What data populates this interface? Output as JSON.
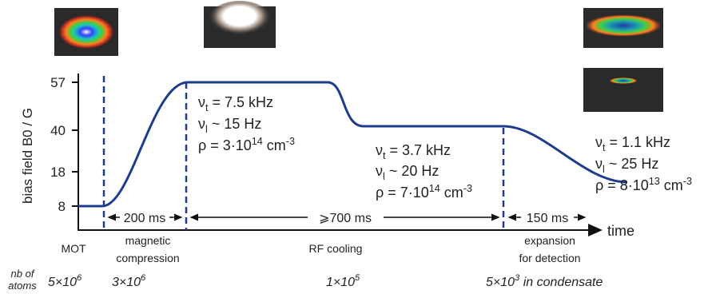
{
  "y_axis": {
    "label": "bias field B0 / G",
    "ticks": [
      "57",
      "40",
      "18",
      "8"
    ]
  },
  "x_axis": {
    "label": "time"
  },
  "durations": [
    "200 ms",
    "⩾700 ms",
    "150 ms"
  ],
  "phases": [
    [
      "MOT"
    ],
    [
      "magnetic",
      "compression"
    ],
    [
      "RF cooling"
    ],
    [
      "expansion",
      "for detection"
    ]
  ],
  "atoms": {
    "label": [
      "nb of",
      "atoms"
    ],
    "counts": [
      [
        {
          "t": "5×10"
        },
        {
          "sup": "6"
        }
      ],
      [
        {
          "t": "3×10"
        },
        {
          "sup": "6"
        }
      ],
      [
        {
          "t": "1×10"
        },
        {
          "sup": "5"
        }
      ],
      [
        {
          "t": "5×10"
        },
        {
          "sup": "3"
        },
        {
          "t": " in condensate"
        }
      ]
    ]
  },
  "annotations": [
    [
      [
        {
          "t": "ν"
        },
        {
          "sub": "t"
        },
        {
          "t": " = 7.5 kHz"
        }
      ],
      [
        {
          "t": "ν"
        },
        {
          "sub": "l"
        },
        {
          "t": " ~ 15 Hz"
        }
      ],
      [
        {
          "t": "ρ = 3·10"
        },
        {
          "sup": "14"
        },
        {
          "t": " cm"
        },
        {
          "sup": "-3"
        }
      ]
    ],
    [
      [
        {
          "t": "ν"
        },
        {
          "sub": "t"
        },
        {
          "t": " = 3.7 kHz"
        }
      ],
      [
        {
          "t": "ν"
        },
        {
          "sub": "l"
        },
        {
          "t": " ~ 20 Hz"
        }
      ],
      [
        {
          "t": "ρ = 7·10"
        },
        {
          "sup": "14"
        },
        {
          "t": " cm"
        },
        {
          "sup": "-3"
        }
      ]
    ],
    [
      [
        {
          "t": "ν"
        },
        {
          "sub": "t"
        },
        {
          "t": " = 1.1 kHz"
        }
      ],
      [
        {
          "t": "ν"
        },
        {
          "sub": "l"
        },
        {
          "t": " ~ 25 Hz"
        }
      ],
      [
        {
          "t": "ρ = 8·10"
        },
        {
          "sup": "13"
        },
        {
          "t": " cm"
        },
        {
          "sup": "-3"
        }
      ]
    ]
  ]
}
